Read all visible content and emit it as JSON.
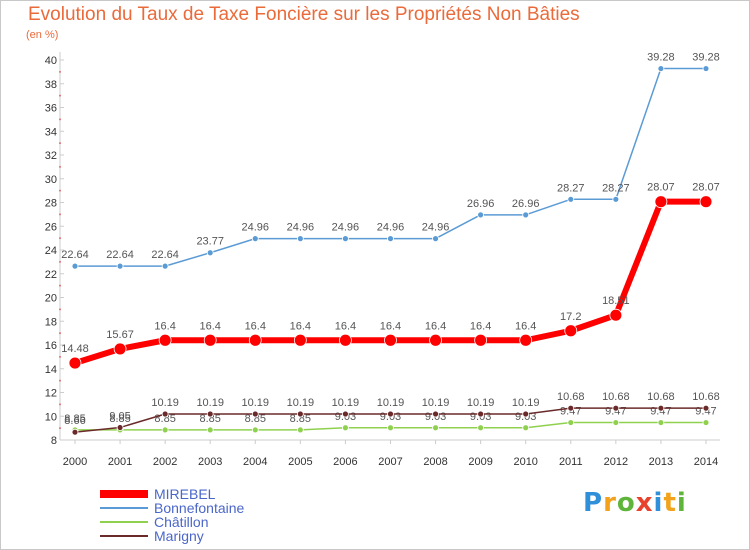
{
  "header": {
    "title": "Evolution du Taux de Taxe Foncière sur les Propriétés Non Bâties",
    "unit": "(en %)"
  },
  "logo": {
    "text": "Proxiti"
  },
  "chart_data": {
    "type": "line",
    "title": "Evolution du Taux de Taxe Foncière sur les Propriétés Non Bâties",
    "ylabel": "(en %)",
    "xlabel": "",
    "ylim": [
      8,
      40
    ],
    "yticks": [
      8,
      10,
      12,
      14,
      16,
      18,
      20,
      22,
      24,
      26,
      28,
      30,
      32,
      34,
      36,
      38,
      40
    ],
    "grid": false,
    "legend_position": "bottom-left",
    "categories": [
      "2000",
      "2001",
      "2002",
      "2003",
      "2004",
      "2005",
      "2006",
      "2007",
      "2008",
      "2009",
      "2010",
      "2011",
      "2012",
      "2013",
      "2014"
    ],
    "series": [
      {
        "name": "Bonnefontaine",
        "color": "#5b9bd5",
        "values": [
          22.64,
          22.64,
          22.64,
          23.77,
          24.96,
          24.96,
          24.96,
          24.96,
          24.96,
          26.96,
          26.96,
          28.27,
          28.27,
          39.28,
          39.28
        ],
        "labels": [
          "22.64",
          "22.64",
          "22.64",
          "23.77",
          "24.96",
          "24.96",
          "24.96",
          "24.96",
          "24.96",
          "26.96",
          "26.96",
          "28.27",
          "28.27",
          "39.28",
          "39.28"
        ]
      },
      {
        "name": "Châtillon",
        "color": "#8fd14f",
        "values": [
          8.85,
          8.85,
          8.85,
          8.85,
          8.85,
          8.85,
          9.03,
          9.03,
          9.03,
          9.03,
          9.03,
          9.47,
          9.47,
          9.47,
          9.47
        ],
        "labels": [
          "8.85",
          "8.85",
          "8.85",
          "8.85",
          "8.85",
          "8.85",
          "9.03",
          "9.03",
          "9.03",
          "9.03",
          "9.03",
          "9.47",
          "9.47",
          "9.47",
          "9.47"
        ]
      },
      {
        "name": "Marigny",
        "color": "#6b2a2a",
        "values": [
          8.66,
          9.05,
          10.19,
          10.19,
          10.19,
          10.19,
          10.19,
          10.19,
          10.19,
          10.19,
          10.19,
          10.68,
          10.68,
          10.68,
          10.68
        ],
        "labels": [
          "8.66",
          "9.05",
          "10.19",
          "10.19",
          "10.19",
          "10.19",
          "10.19",
          "10.19",
          "10.19",
          "10.19",
          "10.19",
          "10.68",
          "10.68",
          "10.68",
          "10.68"
        ]
      },
      {
        "name": "MIREBEL",
        "color": "#ff0000",
        "values": [
          14.48,
          15.67,
          16.4,
          16.4,
          16.4,
          16.4,
          16.4,
          16.4,
          16.4,
          16.4,
          16.4,
          17.2,
          18.51,
          28.07,
          28.07
        ],
        "labels": [
          "14.48",
          "15.67",
          "16.4",
          "16.4",
          "16.4",
          "16.4",
          "16.4",
          "16.4",
          "16.4",
          "16.4",
          "16.4",
          "17.2",
          "18.51",
          "28.07",
          "28.07"
        ]
      }
    ],
    "legend": [
      "MIREBEL",
      "Bonnefontaine",
      "Châtillon",
      "Marigny"
    ]
  }
}
